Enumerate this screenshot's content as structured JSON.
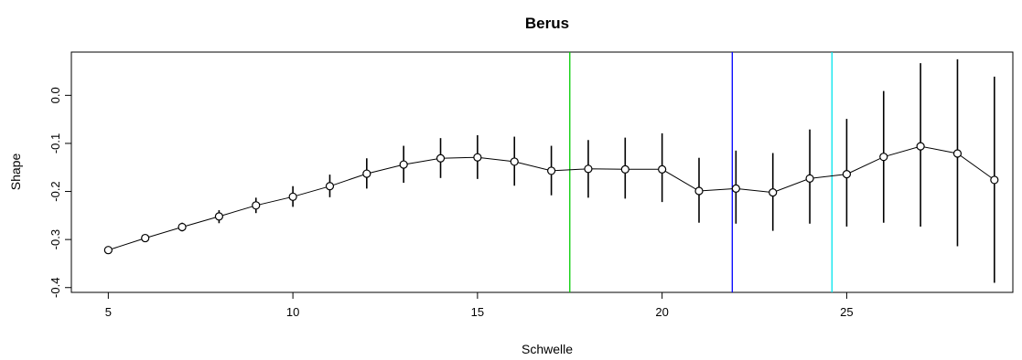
{
  "chart_data": {
    "type": "scatter",
    "title": "Berus",
    "xlabel": "Schwelle",
    "ylabel": "Shape",
    "xlim": [
      4.0,
      29.5
    ],
    "ylim": [
      -0.41,
      0.09
    ],
    "x_ticks": [
      5,
      10,
      15,
      20,
      25
    ],
    "x_tick_labels": [
      "5",
      "10",
      "15",
      "20",
      "25"
    ],
    "y_ticks": [
      -0.4,
      -0.3,
      -0.2,
      -0.1,
      0.0
    ],
    "y_tick_labels": [
      "-0.4",
      "-0.3",
      "-0.2",
      "-0.1",
      "0.0"
    ],
    "grid": false,
    "legend": "none",
    "series": [
      {
        "style": "points connected by lines, vertical error bars",
        "color": "#000000",
        "x": [
          5,
          6,
          7,
          8,
          9,
          10,
          11,
          12,
          13,
          14,
          15,
          16,
          17,
          18,
          19,
          20,
          21,
          22,
          23,
          24,
          25,
          26,
          27,
          28,
          29
        ],
        "y": [
          -0.322,
          -0.297,
          -0.274,
          -0.252,
          -0.229,
          -0.211,
          -0.189,
          -0.163,
          -0.144,
          -0.131,
          -0.129,
          -0.138,
          -0.157,
          -0.153,
          -0.154,
          -0.154,
          -0.199,
          -0.194,
          -0.202,
          -0.173,
          -0.164,
          -0.128,
          -0.106,
          -0.121,
          -0.176
        ],
        "y_low": [
          -0.322,
          -0.303,
          -0.283,
          -0.266,
          -0.245,
          -0.232,
          -0.212,
          -0.194,
          -0.182,
          -0.172,
          -0.174,
          -0.188,
          -0.208,
          -0.213,
          -0.215,
          -0.222,
          -0.265,
          -0.267,
          -0.282,
          -0.267,
          -0.273,
          -0.265,
          -0.273,
          -0.314,
          -0.39
        ],
        "y_high": [
          -0.322,
          -0.292,
          -0.265,
          -0.239,
          -0.213,
          -0.189,
          -0.165,
          -0.131,
          -0.105,
          -0.089,
          -0.083,
          -0.086,
          -0.105,
          -0.093,
          -0.088,
          -0.079,
          -0.13,
          -0.115,
          -0.12,
          -0.071,
          -0.049,
          0.009,
          0.067,
          0.075,
          0.039
        ]
      }
    ],
    "vlines": [
      {
        "x": 17.5,
        "color": "#00cc00"
      },
      {
        "x": 21.9,
        "color": "#0000ff"
      },
      {
        "x": 24.6,
        "color": "#00e5ee"
      }
    ]
  }
}
